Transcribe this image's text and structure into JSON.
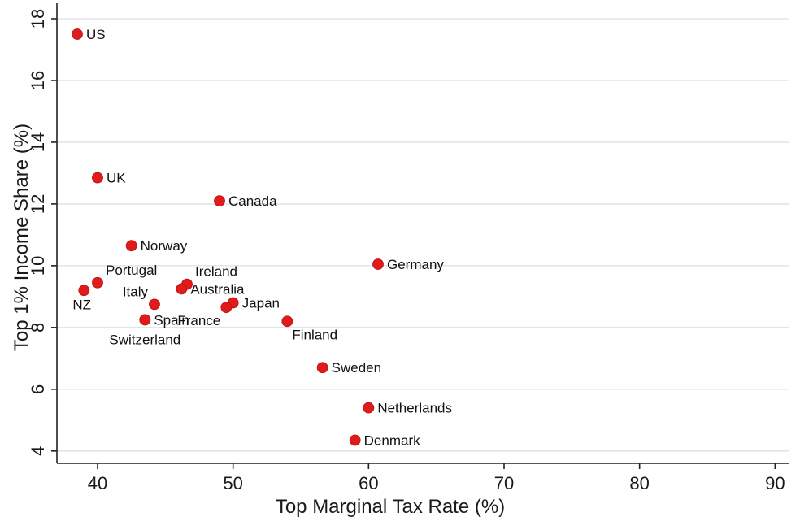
{
  "chart_data": {
    "type": "scatter",
    "xlabel": "Top Marginal Tax Rate (%)",
    "ylabel": "Top 1% Income Share (%)",
    "xlim": [
      37,
      91
    ],
    "ylim": [
      3.6,
      18.5
    ],
    "xticks": [
      40,
      50,
      60,
      70,
      80,
      90
    ],
    "yticks": [
      4,
      6,
      8,
      10,
      12,
      14,
      16,
      18
    ],
    "grid": "horizontal",
    "legend": "none",
    "point_color": "#e01b1b",
    "points": [
      {
        "label": "US",
        "x": 38.5,
        "y": 17.5,
        "pos": "right"
      },
      {
        "label": "UK",
        "x": 40.0,
        "y": 12.85,
        "pos": "right"
      },
      {
        "label": "Canada",
        "x": 49.0,
        "y": 12.1,
        "pos": "right"
      },
      {
        "label": "Norway",
        "x": 42.5,
        "y": 10.65,
        "pos": "right"
      },
      {
        "label": "Germany",
        "x": 60.7,
        "y": 10.05,
        "pos": "right"
      },
      {
        "label": "Portugal",
        "x": 40.0,
        "y": 9.45,
        "pos": "upper-right"
      },
      {
        "label": "NZ",
        "x": 39.0,
        "y": 9.2,
        "pos": "below-left"
      },
      {
        "label": "Ireland",
        "x": 46.6,
        "y": 9.4,
        "pos": "upper-right"
      },
      {
        "label": "Australia",
        "x": 46.2,
        "y": 9.25,
        "pos": "right"
      },
      {
        "label": "Italy",
        "x": 44.2,
        "y": 8.75,
        "pos": "upper-left"
      },
      {
        "label": "Japan",
        "x": 50.0,
        "y": 8.8,
        "pos": "right"
      },
      {
        "label": "France",
        "x": 49.5,
        "y": 8.65,
        "pos": "below-right"
      },
      {
        "label": "Spain",
        "x": 43.5,
        "y": 8.25,
        "pos": "right"
      },
      {
        "label": "Switzerland",
        "x": 43.5,
        "y": 8.25,
        "pos": "below"
      },
      {
        "label": "Finland",
        "x": 54.0,
        "y": 8.2,
        "pos": "below-right"
      },
      {
        "label": "Sweden",
        "x": 56.6,
        "y": 6.7,
        "pos": "right"
      },
      {
        "label": "Netherlands",
        "x": 60.0,
        "y": 5.4,
        "pos": "right"
      },
      {
        "label": "Denmark",
        "x": 59.0,
        "y": 4.35,
        "pos": "right"
      }
    ]
  }
}
